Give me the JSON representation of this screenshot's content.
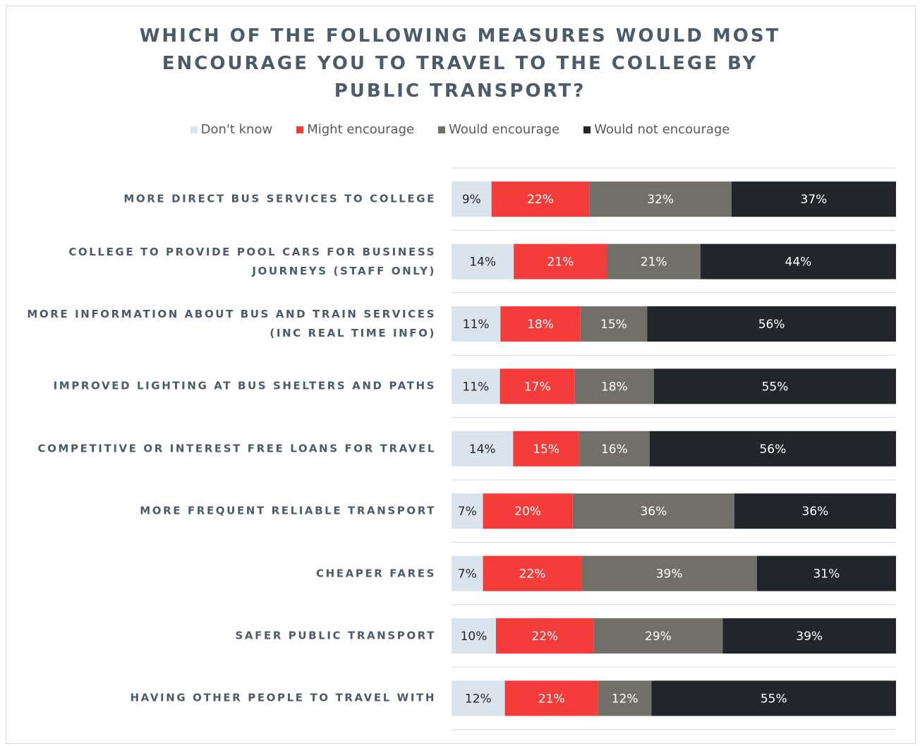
{
  "chart_data": {
    "type": "stacked-bar-100",
    "orientation": "horizontal",
    "title": "WHICH OF THE FOLLOWING MEASURES WOULD MOST ENCOURAGE YOU TO TRAVEL TO THE COLLEGE BY PUBLIC TRANSPORT?",
    "categories": [
      "MORE DIRECT BUS SERVICES TO COLLEGE",
      "COLLEGE TO PROVIDE POOL CARS FOR BUSINESS JOURNEYS (STAFF ONLY)",
      "MORE INFORMATION ABOUT BUS AND TRAIN SERVICES (INC REAL TIME INFO)",
      "IMPROVED LIGHTING AT BUS SHELTERS AND PATHS",
      "COMPETITIVE OR INTEREST FREE LOANS FOR TRAVEL",
      "MORE FREQUENT RELIABLE TRANSPORT",
      "CHEAPER FARES",
      "SAFER PUBLIC TRANSPORT",
      "HAVING OTHER PEOPLE TO TRAVEL WITH"
    ],
    "series": [
      {
        "name": "Don't know",
        "color": "#d9e4ec",
        "label_color": "#262626",
        "values": [
          9,
          14,
          11,
          11,
          14,
          7,
          7,
          10,
          12
        ],
        "value_labels": [
          "9%",
          "14%",
          "11%",
          "11%",
          "14%",
          "7%",
          "7%",
          "10%",
          "12%"
        ]
      },
      {
        "name": "Might encourage",
        "color": "#f43d3a",
        "label_color": "#ffffff",
        "values": [
          22,
          21,
          18,
          17,
          15,
          20,
          22,
          22,
          21
        ],
        "value_labels": [
          "22%",
          "21%",
          "18%",
          "17%",
          "15%",
          "20%",
          "22%",
          "22%",
          "21%"
        ]
      },
      {
        "name": "Would encourage",
        "color": "#706f68",
        "label_color": "#ffffff",
        "values": [
          32,
          21,
          15,
          18,
          16,
          36,
          39,
          29,
          12
        ],
        "value_labels": [
          "32%",
          "21%",
          "15%",
          "18%",
          "16%",
          "36%",
          "39%",
          "29%",
          "12%"
        ]
      },
      {
        "name": "Would not encourage",
        "color": "#22262b",
        "label_color": "#ffffff",
        "values": [
          37,
          44,
          56,
          55,
          56,
          36,
          31,
          39,
          55
        ],
        "value_labels": [
          "37%",
          "44%",
          "56%",
          "55%",
          "56%",
          "36%",
          "31%",
          "39%",
          "55%"
        ]
      }
    ]
  }
}
